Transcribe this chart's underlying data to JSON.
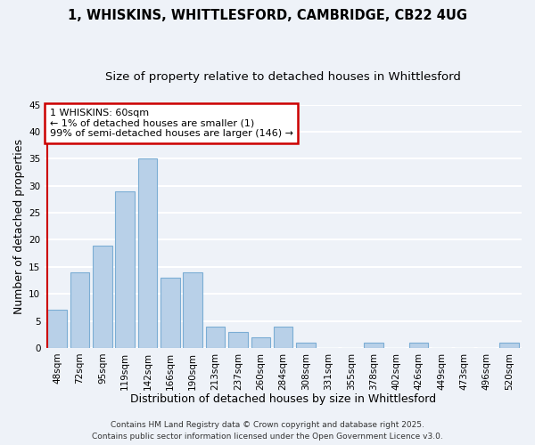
{
  "title_line1": "1, WHISKINS, WHITTLESFORD, CAMBRIDGE, CB22 4UG",
  "title_line2": "Size of property relative to detached houses in Whittlesford",
  "xlabel": "Distribution of detached houses by size in Whittlesford",
  "ylabel": "Number of detached properties",
  "bar_labels": [
    "48sqm",
    "72sqm",
    "95sqm",
    "119sqm",
    "142sqm",
    "166sqm",
    "190sqm",
    "213sqm",
    "237sqm",
    "260sqm",
    "284sqm",
    "308sqm",
    "331sqm",
    "355sqm",
    "378sqm",
    "402sqm",
    "426sqm",
    "449sqm",
    "473sqm",
    "496sqm",
    "520sqm"
  ],
  "bar_values": [
    7,
    14,
    19,
    29,
    35,
    13,
    14,
    4,
    3,
    2,
    4,
    1,
    0,
    0,
    1,
    0,
    1,
    0,
    0,
    0,
    1
  ],
  "bar_color": "#b8d0e8",
  "bar_edge_color": "#7badd4",
  "annotation_line1": "1 WHISKINS: 60sqm",
  "annotation_line2": "← 1% of detached houses are smaller (1)",
  "annotation_line3": "99% of semi-detached houses are larger (146) →",
  "marker_color": "#cc0000",
  "ylim": [
    0,
    45
  ],
  "yticks": [
    0,
    5,
    10,
    15,
    20,
    25,
    30,
    35,
    40,
    45
  ],
  "footer_line1": "Contains HM Land Registry data © Crown copyright and database right 2025.",
  "footer_line2": "Contains public sector information licensed under the Open Government Licence v3.0.",
  "background_color": "#eef2f8",
  "grid_color": "#ffffff",
  "title_fontsize": 10.5,
  "subtitle_fontsize": 9.5,
  "axis_label_fontsize": 9,
  "tick_fontsize": 7.5,
  "annotation_fontsize": 8,
  "footer_fontsize": 6.5
}
